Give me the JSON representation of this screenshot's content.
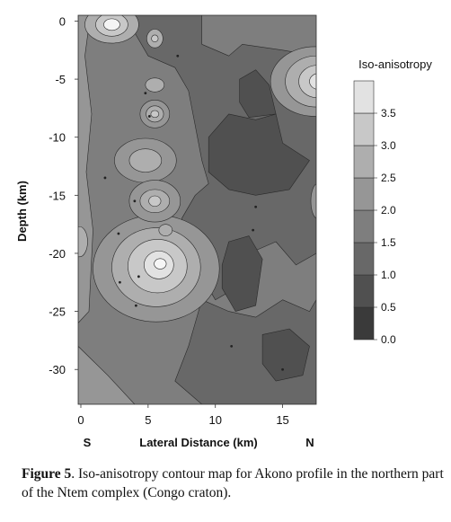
{
  "chart_data": {
    "type": "heatmap",
    "title": "",
    "xlabel": "Lateral Distance (km)",
    "ylabel": "Depth (km)",
    "x_ticks": [
      0,
      5,
      10,
      15
    ],
    "y_ticks": [
      0,
      -5,
      -10,
      -15,
      -20,
      -25,
      -30
    ],
    "xlim": [
      -0.2,
      17.5
    ],
    "ylim": [
      -33,
      0.5
    ],
    "x_end_labels": {
      "left": "S",
      "right": "N"
    },
    "legend": {
      "title": "Iso-anisotropy",
      "placement": "right",
      "levels": [
        0.0,
        0.5,
        1.0,
        1.5,
        2.0,
        2.5,
        3.0,
        3.5
      ],
      "colors": [
        "#3a3a3a",
        "#505050",
        "#686868",
        "#7e7e7e",
        "#969696",
        "#aeaeae",
        "#c8c8c8",
        "#e2e2e2"
      ]
    },
    "features": [
      {
        "kind": "peak",
        "x": 5.7,
        "y": -21,
        "value": 3.5
      },
      {
        "kind": "peak",
        "x": 17.2,
        "y": -5.2,
        "value": 3.5
      },
      {
        "kind": "peak",
        "x": 2.3,
        "y": -0.3,
        "value": 3.5
      },
      {
        "kind": "peak",
        "x": 5.5,
        "y": -8,
        "value": 2.5
      },
      {
        "kind": "peak",
        "x": 4.8,
        "y": -12,
        "value": 2.0
      },
      {
        "kind": "peak",
        "x": 5.5,
        "y": -15.5,
        "value": 2.5
      },
      {
        "kind": "peak",
        "x": 5.5,
        "y": -5.5,
        "value": 2.0
      },
      {
        "kind": "peak",
        "x": 5.5,
        "y": -1.5,
        "value": 2.0
      },
      {
        "kind": "low",
        "x": 10.5,
        "y": -11,
        "value": 0.5
      },
      {
        "kind": "low",
        "x": 10.5,
        "y": -22,
        "value": 0.5
      },
      {
        "kind": "low",
        "x": 15.5,
        "y": -29,
        "value": 0.5
      }
    ]
  },
  "caption": {
    "label": "Figure 5",
    "text": ". Iso-anisotropy contour map for Akono profile in the northern part of the Ntem complex (Congo craton)."
  }
}
